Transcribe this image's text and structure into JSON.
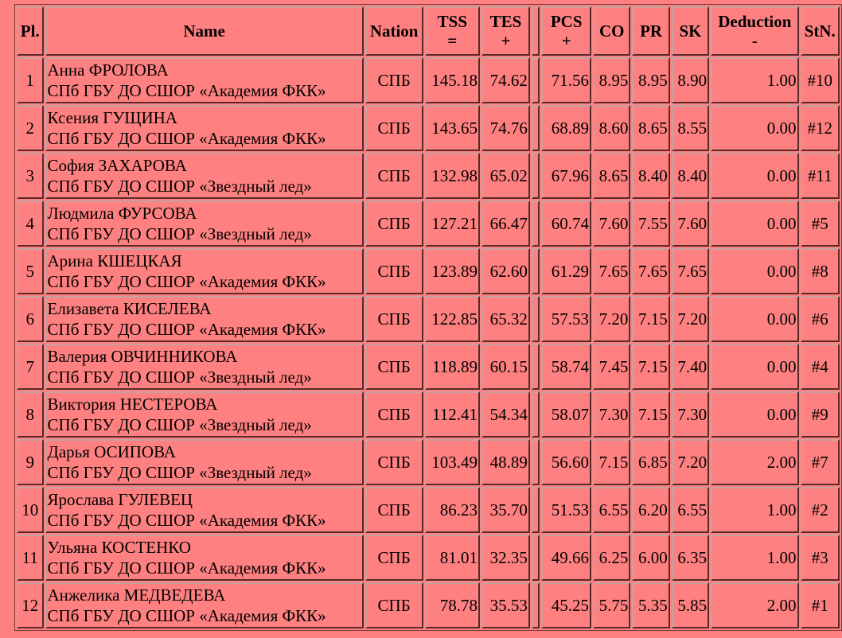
{
  "headers": {
    "pl": "Pl.",
    "name": "Name",
    "nation": "Nation",
    "tss": "TSS",
    "tss_op": "=",
    "tes": "TES",
    "tes_op": "+",
    "pcs": "PCS",
    "pcs_op": "+",
    "co": "CO",
    "pr": "PR",
    "sk": "SK",
    "deduction": "Deduction",
    "deduction_op": "-",
    "stn": "StN."
  },
  "rows": [
    {
      "pl": "1",
      "name": "Анна ФРОЛОВА",
      "club": "СПб ГБУ ДО СШОР «Академия ФКК»",
      "nation": "СПБ",
      "tss": "145.18",
      "tes": "74.62",
      "pcs": "71.56",
      "co": "8.95",
      "pr": "8.95",
      "sk": "8.90",
      "ded": "1.00",
      "stn": "#10"
    },
    {
      "pl": "2",
      "name": "Ксения ГУЩИНА",
      "club": "СПб ГБУ ДО СШОР «Академия ФКК»",
      "nation": "СПБ",
      "tss": "143.65",
      "tes": "74.76",
      "pcs": "68.89",
      "co": "8.60",
      "pr": "8.65",
      "sk": "8.55",
      "ded": "0.00",
      "stn": "#12"
    },
    {
      "pl": "3",
      "name": "София ЗАХАРОВА",
      "club": "СПб ГБУ ДО СШОР «Звездный лед»",
      "nation": "СПБ",
      "tss": "132.98",
      "tes": "65.02",
      "pcs": "67.96",
      "co": "8.65",
      "pr": "8.40",
      "sk": "8.40",
      "ded": "0.00",
      "stn": "#11"
    },
    {
      "pl": "4",
      "name": "Людмила ФУРСОВА",
      "club": "СПб ГБУ ДО СШОР «Звездный лед»",
      "nation": "СПБ",
      "tss": "127.21",
      "tes": "66.47",
      "pcs": "60.74",
      "co": "7.60",
      "pr": "7.55",
      "sk": "7.60",
      "ded": "0.00",
      "stn": "#5"
    },
    {
      "pl": "5",
      "name": "Арина КШЕЦКАЯ",
      "club": "СПб ГБУ ДО СШОР «Академия ФКК»",
      "nation": "СПБ",
      "tss": "123.89",
      "tes": "62.60",
      "pcs": "61.29",
      "co": "7.65",
      "pr": "7.65",
      "sk": "7.65",
      "ded": "0.00",
      "stn": "#8"
    },
    {
      "pl": "6",
      "name": "Елизавета КИСЕЛЕВА",
      "club": "СПб ГБУ ДО СШОР «Академия ФКК»",
      "nation": "СПБ",
      "tss": "122.85",
      "tes": "65.32",
      "pcs": "57.53",
      "co": "7.20",
      "pr": "7.15",
      "sk": "7.20",
      "ded": "0.00",
      "stn": "#6"
    },
    {
      "pl": "7",
      "name": "Валерия ОВЧИННИКОВА",
      "club": "СПб ГБУ ДО СШОР «Звездный лед»",
      "nation": "СПБ",
      "tss": "118.89",
      "tes": "60.15",
      "pcs": "58.74",
      "co": "7.45",
      "pr": "7.15",
      "sk": "7.40",
      "ded": "0.00",
      "stn": "#4"
    },
    {
      "pl": "8",
      "name": "Виктория НЕСТЕРОВА",
      "club": "СПб ГБУ ДО СШОР «Звездный лед»",
      "nation": "СПБ",
      "tss": "112.41",
      "tes": "54.34",
      "pcs": "58.07",
      "co": "7.30",
      "pr": "7.15",
      "sk": "7.30",
      "ded": "0.00",
      "stn": "#9"
    },
    {
      "pl": "9",
      "name": "Дарья ОСИПОВА",
      "club": "СПб ГБУ ДО СШОР «Звездный лед»",
      "nation": "СПБ",
      "tss": "103.49",
      "tes": "48.89",
      "pcs": "56.60",
      "co": "7.15",
      "pr": "6.85",
      "sk": "7.20",
      "ded": "2.00",
      "stn": "#7"
    },
    {
      "pl": "10",
      "name": "Ярослава ГУЛЕВЕЦ",
      "club": "СПб ГБУ ДО СШОР «Академия ФКК»",
      "nation": "СПБ",
      "tss": "86.23",
      "tes": "35.70",
      "pcs": "51.53",
      "co": "6.55",
      "pr": "6.20",
      "sk": "6.55",
      "ded": "1.00",
      "stn": "#2"
    },
    {
      "pl": "11",
      "name": "Ульяна КОСТЕНКО",
      "club": "СПб ГБУ ДО СШОР «Академия ФКК»",
      "nation": "СПБ",
      "tss": "81.01",
      "tes": "32.35",
      "pcs": "49.66",
      "co": "6.25",
      "pr": "6.00",
      "sk": "6.35",
      "ded": "1.00",
      "stn": "#3"
    },
    {
      "pl": "12",
      "name": "Анжелика МЕДВЕДЕВА",
      "club": "СПб ГБУ ДО СШОР «Академия ФКК»",
      "nation": "СПБ",
      "tss": "78.78",
      "tes": "35.53",
      "pcs": "45.25",
      "co": "5.75",
      "pr": "5.35",
      "sk": "5.85",
      "ded": "2.00",
      "stn": "#1"
    }
  ]
}
